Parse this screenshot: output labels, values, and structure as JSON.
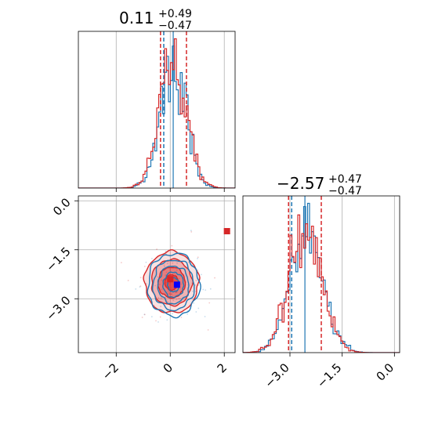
{
  "chart_data": {
    "type": "corner",
    "parameters": [
      "",
      ""
    ],
    "colors": {
      "blue": "#1f77b4",
      "red": "#d62728",
      "grid": "#b0b0b0"
    },
    "panels": [
      {
        "id": "hist-x",
        "type": "histogram",
        "title": {
          "value": "0.11",
          "upper": "+0.49",
          "lower": "−0.47"
        },
        "xlim": [
          -3.4,
          2.4
        ],
        "x_ticks": [
          -2,
          0,
          2
        ],
        "series": [
          {
            "name": "",
            "color": "#1f77b4",
            "center": 0.11,
            "sd": 0.48,
            "quantiles": [
              -0.24
            ],
            "truth": 0.11
          },
          {
            "name": "",
            "color": "#d62728",
            "center": 0.11,
            "sd": 0.5,
            "quantiles": [
              -0.36,
              0.6
            ]
          }
        ]
      },
      {
        "id": "joint",
        "type": "2d-contour",
        "xlim": [
          -3.4,
          2.4
        ],
        "ylim": [
          -4.65,
          0.15
        ],
        "x_ticks": [
          -2,
          0,
          2
        ],
        "x_tick_labels": [
          "−2",
          "0",
          "2"
        ],
        "y_ticks": [
          0.0,
          -1.5,
          -3.0
        ],
        "y_tick_labels": [
          "0.0",
          "−1.5",
          "−3.0"
        ],
        "markers": [
          {
            "name": "",
            "color": "#d62728",
            "x": 2.1,
            "y": -0.93
          },
          {
            "name": "",
            "color": "#d62728",
            "x": 0.0,
            "y": -2.4
          },
          {
            "name": "",
            "color": "#0000ff",
            "x": 0.25,
            "y": -2.57
          }
        ]
      },
      {
        "id": "hist-y",
        "type": "histogram",
        "title": {
          "value": "−2.57",
          "upper": "+0.47",
          "lower": "−0.47"
        },
        "xlim": [
          -4.35,
          0.15
        ],
        "x_ticks": [
          -3.0,
          -1.5,
          0.0
        ],
        "x_tick_labels": [
          "−3.0",
          "−1.5",
          "0.0"
        ],
        "series": [
          {
            "name": "",
            "color": "#1f77b4",
            "center": -2.5,
            "sd": 0.47,
            "quantiles": [
              -2.95
            ],
            "truth": -2.57
          },
          {
            "name": "",
            "color": "#d62728",
            "center": -2.55,
            "sd": 0.47,
            "quantiles": [
              -3.04,
              -2.1
            ]
          }
        ]
      }
    ]
  }
}
